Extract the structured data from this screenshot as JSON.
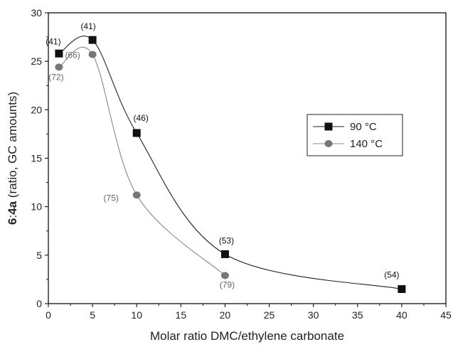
{
  "chart_data": {
    "type": "line",
    "title": "",
    "xlabel": "Molar ratio DMC/ethylene carbonate",
    "ylabel_bold": "6",
    "ylabel_sep": ":",
    "ylabel_bold2": "4a",
    "ylabel_rest": " (ratio, GC amounts)",
    "xlim": [
      0,
      45
    ],
    "ylim": [
      0,
      30
    ],
    "xticks": [
      0,
      5,
      10,
      15,
      20,
      25,
      30,
      35,
      40,
      45
    ],
    "yticks": [
      0,
      5,
      10,
      15,
      20,
      25,
      30
    ],
    "legend_position": "right-middle",
    "series": [
      {
        "name": "90 °C",
        "marker": "square",
        "color": "#111111",
        "x": [
          1.2,
          5,
          10,
          20,
          40
        ],
        "y": [
          25.8,
          27.2,
          17.6,
          5.1,
          1.5
        ],
        "labels": [
          "(41)",
          "(41)",
          "(46)",
          "(53)",
          "(54)"
        ]
      },
      {
        "name": "140 °C",
        "marker": "circle",
        "color": "#777777",
        "x": [
          1.2,
          5,
          10,
          20
        ],
        "y": [
          24.4,
          25.7,
          11.2,
          2.9
        ],
        "labels": [
          "(72)",
          "(66)",
          "(75)",
          "(79)"
        ]
      }
    ]
  }
}
